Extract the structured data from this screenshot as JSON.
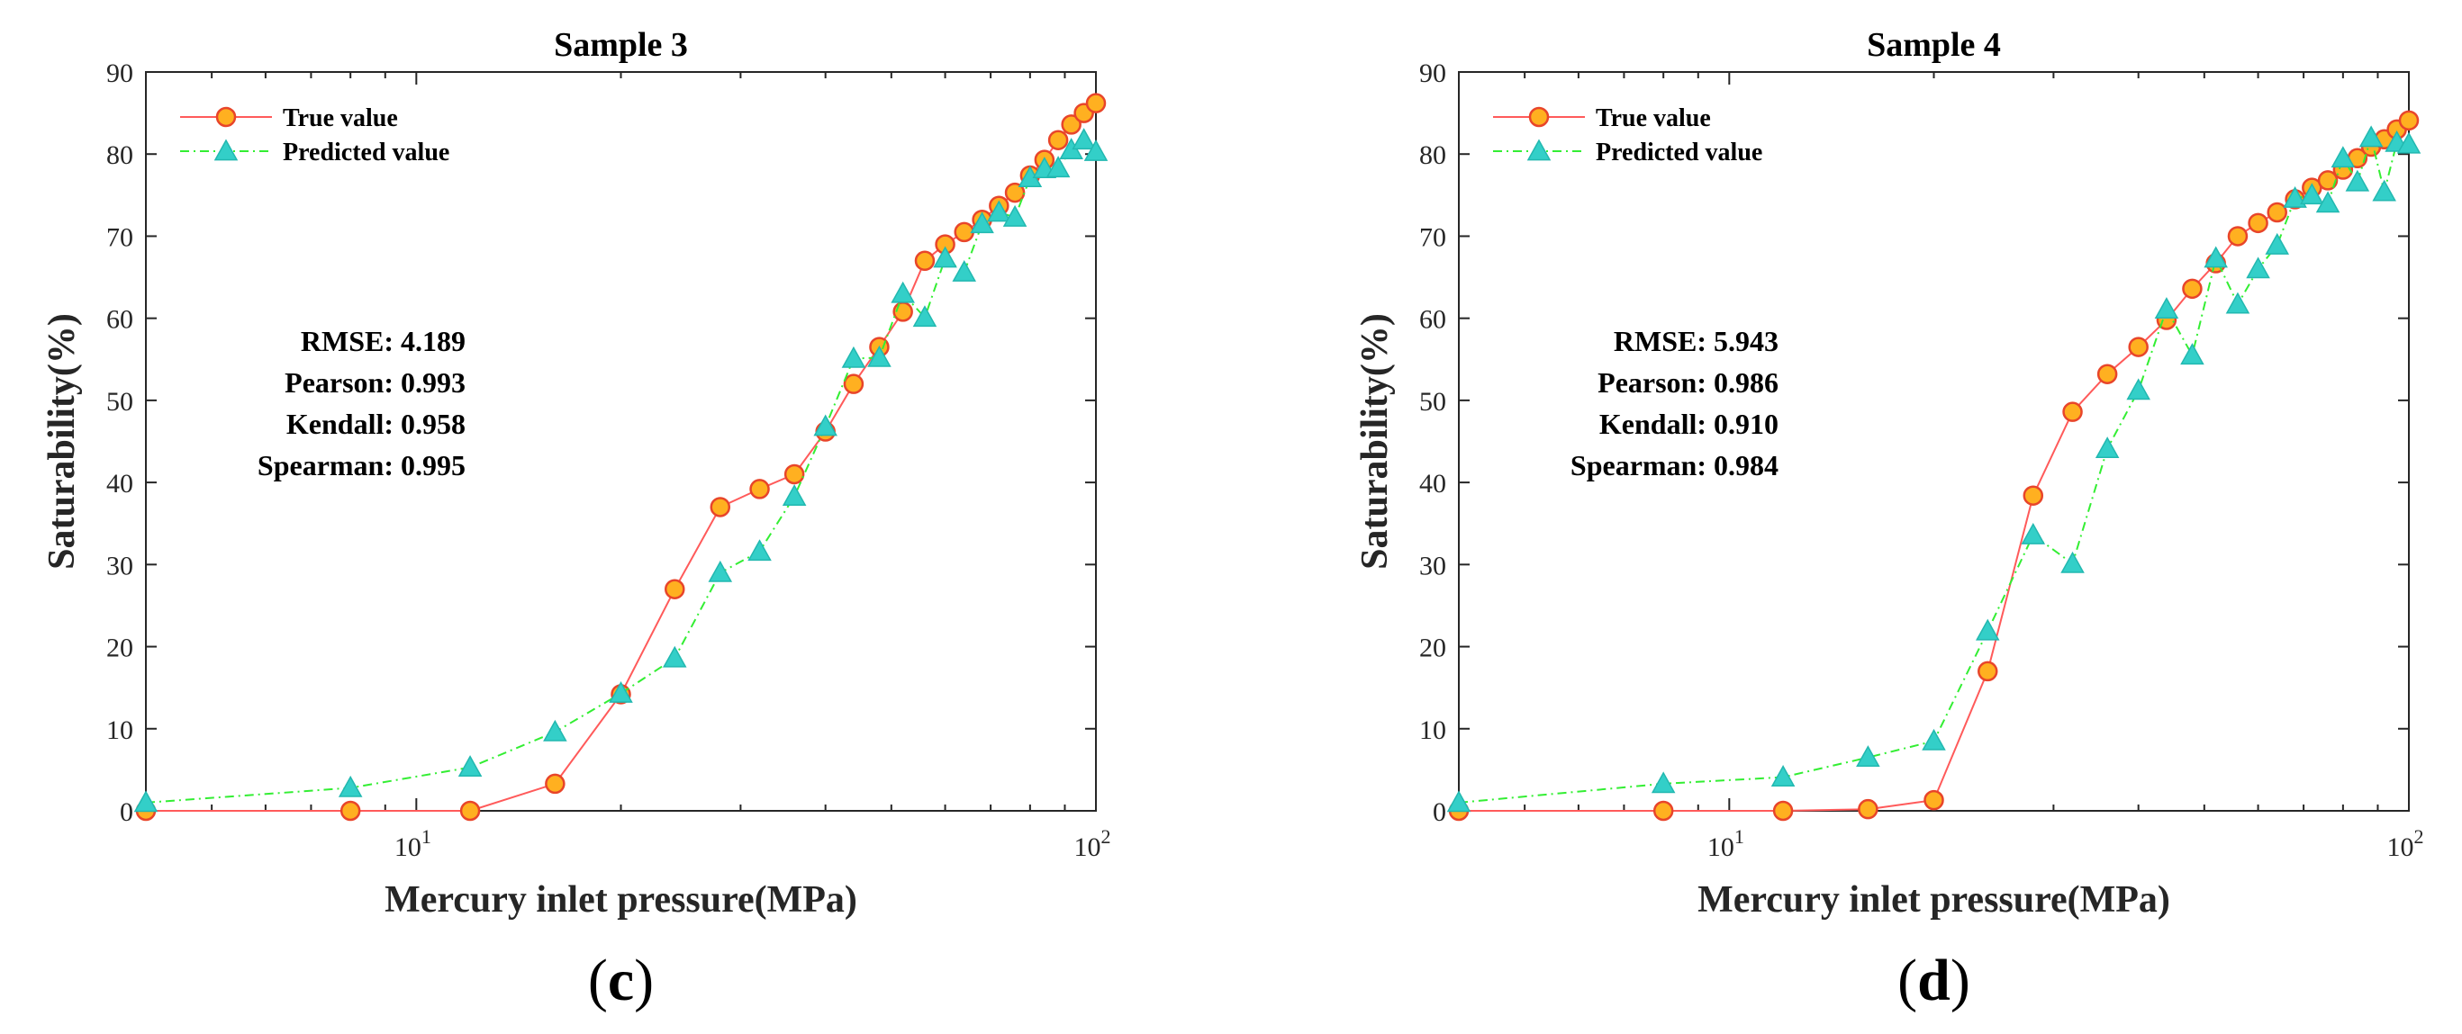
{
  "chart_data": [
    {
      "type": "line",
      "title": "Sample 3",
      "xlabel": "Mercury inlet pressure(MPa)",
      "ylabel": "Saturability(%)",
      "xscale": "log",
      "xlim": [
        4,
        100
      ],
      "ylim": [
        0,
        90
      ],
      "yticks": [
        0,
        10,
        20,
        30,
        40,
        50,
        60,
        70,
        80,
        90
      ],
      "xticks": [
        {
          "base": "10",
          "exp": "1",
          "value": 10
        },
        {
          "base": "10",
          "exp": "2",
          "value": 100
        }
      ],
      "legend_position": "top-left",
      "panel_label": {
        "open": "(",
        "letter": "c",
        "close": ")"
      },
      "stats": [
        {
          "label": "RMSE:",
          "value": "4.189"
        },
        {
          "label": "Pearson:",
          "value": "0.993"
        },
        {
          "label": "Kendall:",
          "value": "0.958"
        },
        {
          "label": "Spearman:",
          "value": "0.995"
        }
      ],
      "series": [
        {
          "name": "True value",
          "line_color": "#ff5a5a",
          "marker": "circle",
          "marker_fill": "#ffb020",
          "marker_edge": "#e8452a",
          "x": [
            4,
            8,
            12,
            16,
            20,
            24,
            28,
            32,
            36,
            40,
            44,
            48,
            52,
            56,
            60,
            64,
            68,
            72,
            76,
            80,
            84,
            88,
            92,
            96,
            100
          ],
          "y": [
            0,
            0,
            0,
            3.3,
            14.2,
            27,
            37,
            39.2,
            41,
            46.2,
            52,
            56.5,
            60.8,
            67,
            69,
            70.5,
            72,
            73.7,
            75.3,
            77.4,
            79.3,
            81.7,
            83.6,
            85,
            86.2
          ]
        },
        {
          "name": "Predicted value",
          "line_color": "#33ee33",
          "marker": "triangle",
          "marker_fill": "#33cfc8",
          "marker_edge": "#22b8b0",
          "x": [
            4,
            8,
            12,
            16,
            20,
            24,
            28,
            32,
            36,
            40,
            44,
            48,
            52,
            56,
            60,
            64,
            68,
            72,
            76,
            80,
            84,
            88,
            92,
            96,
            100
          ],
          "y": [
            1,
            2.8,
            5.3,
            9.6,
            14.3,
            18.6,
            29,
            31.6,
            38.3,
            46.8,
            55.1,
            55.2,
            63,
            60.1,
            67.3,
            65.6,
            71.5,
            72.9,
            72.3,
            77.1,
            78.2,
            78.3,
            80.5,
            81.7,
            80.3
          ]
        }
      ]
    },
    {
      "type": "line",
      "title": "Sample 4",
      "xlabel": "Mercury inlet pressure(MPa)",
      "ylabel": "Saturability(%)",
      "xscale": "log",
      "xlim": [
        4,
        100
      ],
      "ylim": [
        0,
        90
      ],
      "yticks": [
        0,
        10,
        20,
        30,
        40,
        50,
        60,
        70,
        80,
        90
      ],
      "xticks": [
        {
          "base": "10",
          "exp": "1",
          "value": 10
        },
        {
          "base": "10",
          "exp": "2",
          "value": 100
        }
      ],
      "legend_position": "top-left",
      "panel_label": {
        "open": "(",
        "letter": "d",
        "close": ")"
      },
      "stats": [
        {
          "label": "RMSE:",
          "value": "5.943"
        },
        {
          "label": "Pearson:",
          "value": "0.986"
        },
        {
          "label": "Kendall:",
          "value": "0.910"
        },
        {
          "label": "Spearman:",
          "value": "0.984"
        }
      ],
      "series": [
        {
          "name": "True value",
          "line_color": "#ff5a5a",
          "marker": "circle",
          "marker_fill": "#ffb020",
          "marker_edge": "#e8452a",
          "x": [
            4,
            8,
            12,
            16,
            20,
            24,
            28,
            32,
            36,
            40,
            44,
            48,
            52,
            56,
            60,
            64,
            68,
            72,
            76,
            80,
            84,
            88,
            92,
            96,
            100
          ],
          "y": [
            0,
            0,
            0,
            0.2,
            1.3,
            17,
            38.4,
            48.6,
            53.2,
            56.5,
            59.8,
            63.6,
            66.7,
            70,
            71.6,
            72.9,
            74.5,
            75.9,
            76.8,
            78.1,
            79.5,
            80.9,
            81.8,
            83,
            84.1
          ]
        },
        {
          "name": "Predicted value",
          "line_color": "#33ee33",
          "marker": "triangle",
          "marker_fill": "#33cfc8",
          "marker_edge": "#22b8b0",
          "x": [
            4,
            8,
            12,
            16,
            20,
            24,
            28,
            32,
            36,
            40,
            44,
            48,
            52,
            56,
            60,
            64,
            68,
            72,
            76,
            80,
            84,
            88,
            92,
            96,
            100
          ],
          "y": [
            1,
            3.3,
            4.1,
            6.5,
            8.5,
            21.9,
            33.6,
            30.1,
            44.1,
            51.2,
            61.1,
            55.5,
            67.3,
            61.7,
            66,
            68.9,
            74.6,
            75,
            74,
            79.5,
            76.6,
            82,
            75.4,
            81.4,
            81.2
          ]
        }
      ]
    }
  ]
}
